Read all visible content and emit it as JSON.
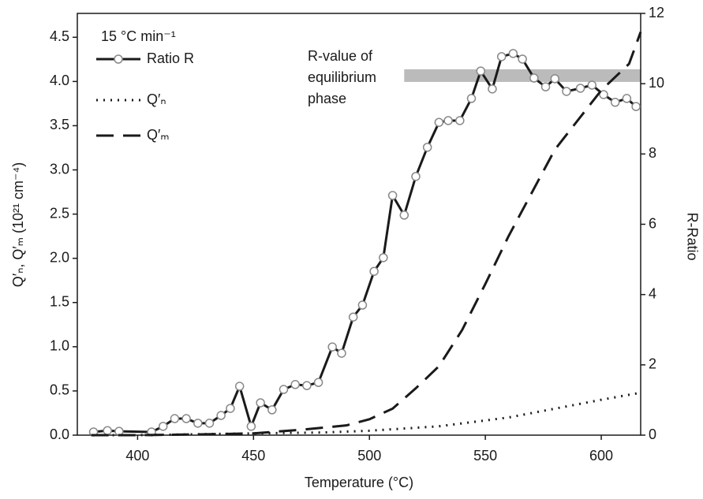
{
  "chart_data": {
    "type": "line",
    "xlabel": "Temperature (°C)",
    "ylabel": "Q′ₙ, Q′ₘ (10²¹ cm⁻⁴)",
    "y2label": "R-Ratio",
    "legend_title": "15 °C min⁻¹",
    "legend": "upper left",
    "xlim": [
      374,
      617
    ],
    "xticks": [
      400,
      450,
      500,
      550,
      600
    ],
    "ylim": [
      0,
      4.77
    ],
    "yticks": [
      {
        "value": 0,
        "label": "0.0"
      },
      0.5,
      {
        "value": 1,
        "label": "1.0"
      },
      1.5,
      {
        "value": 2,
        "label": "2.0"
      },
      2.5,
      {
        "value": 3,
        "label": "3.0"
      },
      3.5,
      {
        "value": 4,
        "label": "4.0"
      },
      4.5
    ],
    "y2lim": [
      0,
      12
    ],
    "y2ticks": [
      0,
      2,
      4,
      6,
      8,
      10,
      12
    ],
    "annotation": {
      "lines": [
        "R-value of",
        "equilibrium",
        "phase"
      ],
      "color": "#bbbbbb",
      "x": [
        515,
        617
      ],
      "y": [
        10.05,
        10.41
      ]
    },
    "series": [
      {
        "name": "Ratio R",
        "color": "#1a1a1a",
        "style": "solid",
        "marker": "circle",
        "axis": "y2",
        "x": [
          381,
          387,
          392,
          406,
          411,
          416,
          421,
          426,
          431,
          436,
          440,
          444,
          449,
          453,
          458,
          463,
          468,
          473,
          478,
          484,
          488,
          493,
          497,
          502,
          506,
          510,
          515,
          520,
          525,
          530,
          534,
          539,
          544,
          548,
          553,
          557,
          562,
          566,
          571,
          576,
          580,
          585,
          591,
          596,
          601,
          606,
          611,
          615
        ],
        "values": [
          0.09,
          0.13,
          0.11,
          0.09,
          0.25,
          0.47,
          0.47,
          0.34,
          0.34,
          0.56,
          0.76,
          1.39,
          0.25,
          0.92,
          0.72,
          1.3,
          1.44,
          1.41,
          1.5,
          2.51,
          2.33,
          3.36,
          3.7,
          4.66,
          5.05,
          6.82,
          6.26,
          7.36,
          8.19,
          8.9,
          8.95,
          8.95,
          9.58,
          10.36,
          9.85,
          10.77,
          10.86,
          10.7,
          10.16,
          9.91,
          10.14,
          9.78,
          9.87,
          9.96,
          9.69,
          9.47,
          9.58,
          9.35
        ]
      },
      {
        "name": "Q′ₙ",
        "color": "#1a1a1a",
        "style": "dotted",
        "x": [
          380,
          400,
          450,
          480,
          500,
          530,
          560,
          580,
          600,
          617
        ],
        "values": [
          0,
          0,
          0.02,
          0.03,
          0.05,
          0.1,
          0.2,
          0.3,
          0.4,
          0.48
        ]
      },
      {
        "name": "Q′ₘ",
        "color": "#1a1a1a",
        "style": "dashed",
        "x": [
          380,
          400,
          430,
          450,
          470,
          490,
          500,
          510,
          520,
          530,
          540,
          550,
          560,
          580,
          600,
          612,
          617
        ],
        "values": [
          0,
          0,
          0.01,
          0.02,
          0.06,
          0.11,
          0.18,
          0.3,
          0.53,
          0.78,
          1.19,
          1.71,
          2.25,
          3.23,
          3.9,
          4.2,
          4.56
        ]
      }
    ]
  }
}
